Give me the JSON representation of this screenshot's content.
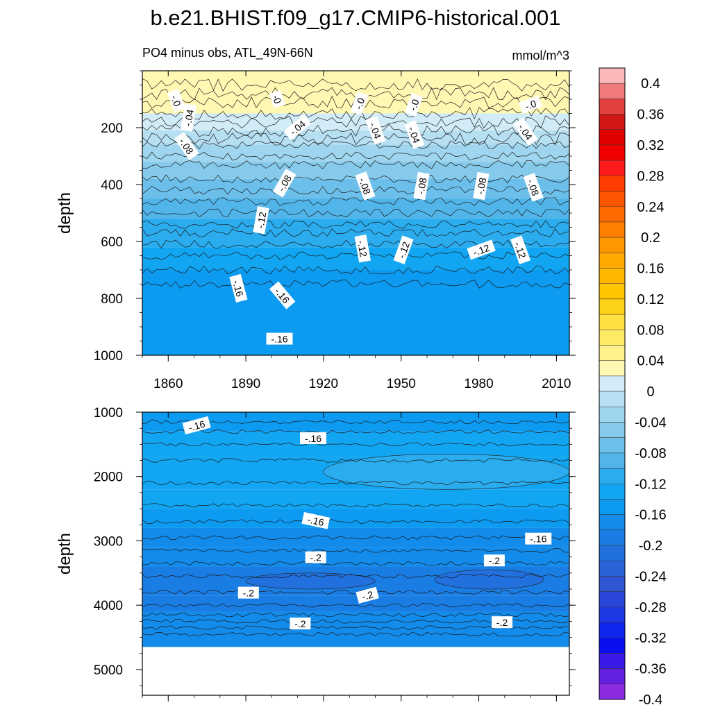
{
  "title": "b.e21.BHIST.f09_g17.CMIP6-historical.001",
  "subtitle_left": "PO4 minus obs, ATL_49N-66N",
  "subtitle_right": "mmol/m^3",
  "chart_data": [
    {
      "type": "heatmap",
      "panel": "upper",
      "ylabel": "depth",
      "ylim": [
        1000,
        0
      ],
      "xlim": [
        1850,
        2015
      ],
      "xticks": [
        1860,
        1890,
        1920,
        1950,
        1980,
        2010
      ],
      "xtick_labels": [
        "1860",
        "1890",
        "1920",
        "1950",
        "1980",
        "2010"
      ],
      "yticks": [
        200,
        400,
        600,
        800,
        1000
      ],
      "ytick_labels": [
        "200",
        "400",
        "600",
        "800",
        "1000"
      ],
      "bands": [
        {
          "d0": 0,
          "d1": 80,
          "value": 0.02
        },
        {
          "d0": 80,
          "d1": 150,
          "value": 0.005
        },
        {
          "d0": 150,
          "d1": 210,
          "value": -0.01
        },
        {
          "d0": 210,
          "d1": 260,
          "value": -0.03
        },
        {
          "d0": 260,
          "d1": 320,
          "value": -0.05
        },
        {
          "d0": 320,
          "d1": 380,
          "value": -0.07
        },
        {
          "d0": 380,
          "d1": 450,
          "value": -0.09
        },
        {
          "d0": 450,
          "d1": 520,
          "value": -0.11
        },
        {
          "d0": 520,
          "d1": 620,
          "value": -0.13
        },
        {
          "d0": 620,
          "d1": 700,
          "value": -0.145
        },
        {
          "d0": 700,
          "d1": 1000,
          "value": -0.165
        }
      ],
      "contour_depths": [
        50,
        80,
        110,
        150,
        180,
        210,
        240,
        260,
        300,
        330,
        380,
        420,
        460,
        500,
        540,
        570,
        610,
        650,
        700,
        750
      ],
      "contour_labels": [
        {
          "text": "-.0",
          "x": 1863,
          "d": 105,
          "angle": 70
        },
        {
          "text": "-0",
          "x": 1902,
          "d": 100,
          "angle": 70
        },
        {
          "text": "-.0",
          "x": 1934,
          "d": 115,
          "angle": -70
        },
        {
          "text": "-.0",
          "x": 1955,
          "d": 120,
          "angle": -70
        },
        {
          "text": "-.0",
          "x": 2000,
          "d": 120,
          "angle": -20
        },
        {
          "text": "-.04",
          "x": 1868,
          "d": 165,
          "angle": -80
        },
        {
          "text": "-.04",
          "x": 1910,
          "d": 200,
          "angle": -40
        },
        {
          "text": "-.04",
          "x": 1940,
          "d": 210,
          "angle": 70
        },
        {
          "text": "-.04",
          "x": 1955,
          "d": 225,
          "angle": 70
        },
        {
          "text": "-.04",
          "x": 1998,
          "d": 215,
          "angle": 55
        },
        {
          "text": "-.08",
          "x": 1867,
          "d": 265,
          "angle": 55
        },
        {
          "text": "-.08",
          "x": 1905,
          "d": 395,
          "angle": -60
        },
        {
          "text": "-.08",
          "x": 1936,
          "d": 405,
          "angle": 70
        },
        {
          "text": "-.08",
          "x": 1958,
          "d": 405,
          "angle": -80
        },
        {
          "text": "-.08",
          "x": 1981,
          "d": 405,
          "angle": -80
        },
        {
          "text": "-.08",
          "x": 2001,
          "d": 410,
          "angle": 70
        },
        {
          "text": "-.12",
          "x": 1896,
          "d": 525,
          "angle": -80
        },
        {
          "text": "-.12",
          "x": 1935,
          "d": 625,
          "angle": 80
        },
        {
          "text": "-.12",
          "x": 1951,
          "d": 630,
          "angle": -70
        },
        {
          "text": "-.12",
          "x": 1981,
          "d": 630,
          "angle": -20
        },
        {
          "text": "-.12",
          "x": 1996,
          "d": 630,
          "angle": 70
        },
        {
          "text": "-.16",
          "x": 1887,
          "d": 765,
          "angle": 75
        },
        {
          "text": "-.16",
          "x": 1904,
          "d": 790,
          "angle": 50
        },
        {
          "text": "-.16",
          "x": 1903,
          "d": 943,
          "angle": 0
        }
      ]
    },
    {
      "type": "heatmap",
      "panel": "lower",
      "ylabel": "depth",
      "ylim": [
        5400,
        1000
      ],
      "xlim": [
        1850,
        2015
      ],
      "xticks": [
        1860,
        1890,
        1920,
        1950,
        1980,
        2010
      ],
      "yticks": [
        1000,
        2000,
        3000,
        4000,
        5000
      ],
      "ytick_labels": [
        "1000",
        "2000",
        "3000",
        "4000",
        "5000"
      ],
      "data_max_depth": 4650,
      "bands": [
        {
          "d0": 1000,
          "d1": 1300,
          "value": -0.165
        },
        {
          "d0": 1300,
          "d1": 1700,
          "value": -0.15
        },
        {
          "d0": 1700,
          "d1": 2200,
          "value": -0.145
        },
        {
          "d0": 2200,
          "d1": 2500,
          "value": -0.155
        },
        {
          "d0": 2500,
          "d1": 2800,
          "value": -0.165
        },
        {
          "d0": 2800,
          "d1": 3100,
          "value": -0.18
        },
        {
          "d0": 3100,
          "d1": 3400,
          "value": -0.195
        },
        {
          "d0": 3400,
          "d1": 3850,
          "value": -0.205
        },
        {
          "d0": 3850,
          "d1": 4100,
          "value": -0.2
        },
        {
          "d0": 4100,
          "d1": 4650,
          "value": -0.19
        }
      ],
      "anomalies": [
        {
          "x0": 1890,
          "x1": 1940,
          "d0": 3500,
          "d1": 3750,
          "value": -0.225
        },
        {
          "x0": 1963,
          "x1": 2005,
          "d0": 3450,
          "d1": 3750,
          "value": -0.225
        },
        {
          "x0": 1920,
          "x1": 2015,
          "d0": 1650,
          "d1": 2200,
          "value": -0.135
        }
      ],
      "contour_depths": [
        1150,
        1300,
        1500,
        1750,
        2100,
        2450,
        2700,
        2950,
        3150,
        3350,
        3550,
        3800,
        4000,
        4150,
        4250,
        4350,
        4450
      ],
      "contour_labels": [
        {
          "text": "-.16",
          "x": 1871,
          "d": 1210,
          "angle": -15
        },
        {
          "text": "-.16",
          "x": 1916,
          "d": 1410,
          "angle": 0
        },
        {
          "text": "-.16",
          "x": 1917,
          "d": 2690,
          "angle": 12
        },
        {
          "text": "-.16",
          "x": 2003,
          "d": 2970,
          "angle": 0
        },
        {
          "text": "-.2",
          "x": 1917,
          "d": 3260,
          "angle": 0
        },
        {
          "text": "-.2",
          "x": 1986,
          "d": 3310,
          "angle": 0
        },
        {
          "text": "-.2",
          "x": 1891,
          "d": 3810,
          "angle": 0
        },
        {
          "text": "-.2",
          "x": 1937,
          "d": 3850,
          "angle": -15
        },
        {
          "text": "-.2",
          "x": 1911,
          "d": 4290,
          "angle": 0
        },
        {
          "text": "-.2",
          "x": 1989,
          "d": 4270,
          "angle": 0
        }
      ]
    }
  ],
  "colorbar": {
    "levels": [
      0.4,
      0.38,
      0.36,
      0.34,
      0.32,
      0.3,
      0.28,
      0.26,
      0.24,
      0.22,
      0.2,
      0.18,
      0.16,
      0.14,
      0.12,
      0.1,
      0.08,
      0.06,
      0.04,
      0.02,
      0,
      -0.02,
      -0.04,
      -0.06,
      -0.08,
      -0.1,
      -0.12,
      -0.14,
      -0.16,
      -0.18,
      -0.2,
      -0.22,
      -0.24,
      -0.26,
      -0.28,
      -0.3,
      -0.32,
      -0.34,
      -0.36,
      -0.38,
      -0.4
    ],
    "colors": [
      "#fbb8b8",
      "#f07a7a",
      "#e0403e",
      "#d01616",
      "#e00000",
      "#f00000",
      "#ff1a1a",
      "#ff3d00",
      "#ff5500",
      "#ff6a00",
      "#ff7f00",
      "#ff9800",
      "#ffa800",
      "#ffb800",
      "#ffc400",
      "#ffd21a",
      "#ffe040",
      "#ffea66",
      "#fff18c",
      "#fff8b3",
      "#d2ecf7",
      "#b6dff2",
      "#9fd5ee",
      "#86caeb",
      "#6cbfea",
      "#52b5ea",
      "#2aacee",
      "#12a6f2",
      "#0d9af1",
      "#138bea",
      "#1a7de4",
      "#2270de",
      "#2a62d8",
      "#2f55d2",
      "#2a46da",
      "#1e38e4",
      "#1026ee",
      "#0a0ff0",
      "#3a1ae8",
      "#6420e0",
      "#8a2be2"
    ],
    "labels": [
      "0.4",
      "0.36",
      "0.32",
      "0.28",
      "0.24",
      "0.2",
      "0.16",
      "0.12",
      "0.08",
      "0.04",
      "0",
      "-0.04",
      "-0.08",
      "-0.12",
      "-0.16",
      "-0.2",
      "-0.24",
      "-0.28",
      "-0.32",
      "-0.36",
      "-0.4"
    ]
  }
}
